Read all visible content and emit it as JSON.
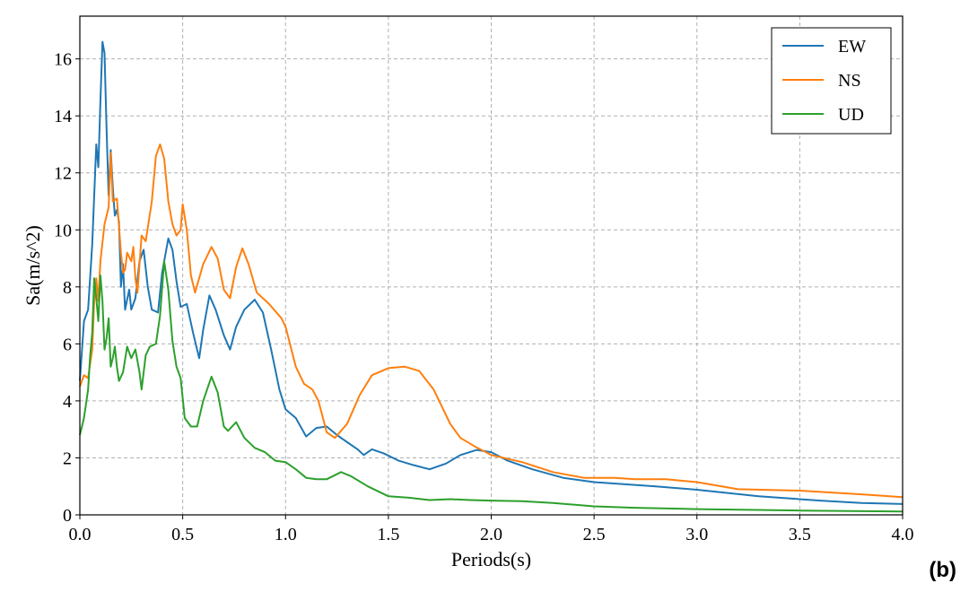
{
  "panel_label": "(b)",
  "chart_data": {
    "type": "line",
    "xlabel": "Periods(s)",
    "ylabel": "Sa(m/s^2)",
    "xlim": [
      0.0,
      4.0
    ],
    "ylim": [
      0,
      17.5
    ],
    "xticks": [
      "0.0",
      "0.5",
      "1.0",
      "1.5",
      "2.0",
      "2.5",
      "3.0",
      "3.5",
      "4.0"
    ],
    "yticks": [
      "0",
      "2",
      "4",
      "6",
      "8",
      "10",
      "12",
      "14",
      "16"
    ],
    "grid": true,
    "legend_position": "top-right",
    "series": [
      {
        "name": "EW",
        "color": "#1f77b4",
        "points": [
          [
            0,
            4.7
          ],
          [
            0.02,
            6.8
          ],
          [
            0.04,
            7.2
          ],
          [
            0.06,
            9.5
          ],
          [
            0.08,
            13.0
          ],
          [
            0.09,
            12.2
          ],
          [
            0.1,
            14.5
          ],
          [
            0.11,
            16.6
          ],
          [
            0.12,
            16.2
          ],
          [
            0.13,
            13.5
          ],
          [
            0.14,
            11.2
          ],
          [
            0.15,
            12.8
          ],
          [
            0.16,
            11.5
          ],
          [
            0.17,
            10.5
          ],
          [
            0.18,
            10.7
          ],
          [
            0.19,
            10.3
          ],
          [
            0.2,
            8.0
          ],
          [
            0.21,
            8.8
          ],
          [
            0.22,
            7.2
          ],
          [
            0.24,
            7.9
          ],
          [
            0.25,
            7.2
          ],
          [
            0.27,
            7.6
          ],
          [
            0.29,
            8.9
          ],
          [
            0.31,
            9.3
          ],
          [
            0.33,
            8.0
          ],
          [
            0.35,
            7.2
          ],
          [
            0.38,
            7.1
          ],
          [
            0.4,
            8.5
          ],
          [
            0.43,
            9.7
          ],
          [
            0.45,
            9.3
          ],
          [
            0.47,
            8.2
          ],
          [
            0.49,
            7.3
          ],
          [
            0.52,
            7.4
          ],
          [
            0.55,
            6.4
          ],
          [
            0.58,
            5.5
          ],
          [
            0.6,
            6.5
          ],
          [
            0.63,
            7.7
          ],
          [
            0.66,
            7.2
          ],
          [
            0.7,
            6.3
          ],
          [
            0.73,
            5.8
          ],
          [
            0.76,
            6.6
          ],
          [
            0.8,
            7.2
          ],
          [
            0.85,
            7.55
          ],
          [
            0.89,
            7.1
          ],
          [
            0.93,
            5.8
          ],
          [
            0.97,
            4.4
          ],
          [
            1.0,
            3.7
          ],
          [
            1.05,
            3.4
          ],
          [
            1.1,
            2.75
          ],
          [
            1.15,
            3.05
          ],
          [
            1.2,
            3.1
          ],
          [
            1.25,
            2.8
          ],
          [
            1.3,
            2.55
          ],
          [
            1.35,
            2.3
          ],
          [
            1.38,
            2.1
          ],
          [
            1.42,
            2.3
          ],
          [
            1.48,
            2.15
          ],
          [
            1.55,
            1.9
          ],
          [
            1.62,
            1.75
          ],
          [
            1.7,
            1.6
          ],
          [
            1.78,
            1.8
          ],
          [
            1.85,
            2.1
          ],
          [
            1.93,
            2.28
          ],
          [
            2.0,
            2.2
          ],
          [
            2.08,
            1.9
          ],
          [
            2.2,
            1.6
          ],
          [
            2.35,
            1.3
          ],
          [
            2.5,
            1.15
          ],
          [
            2.8,
            1.0
          ],
          [
            3.0,
            0.88
          ],
          [
            3.3,
            0.65
          ],
          [
            3.6,
            0.5
          ],
          [
            3.8,
            0.42
          ],
          [
            4.0,
            0.38
          ]
        ]
      },
      {
        "name": "NS",
        "color": "#ff7f0e",
        "points": [
          [
            0,
            4.5
          ],
          [
            0.02,
            4.9
          ],
          [
            0.04,
            4.8
          ],
          [
            0.06,
            5.8
          ],
          [
            0.07,
            7.5
          ],
          [
            0.08,
            8.3
          ],
          [
            0.09,
            7.5
          ],
          [
            0.1,
            8.9
          ],
          [
            0.12,
            10.2
          ],
          [
            0.14,
            10.8
          ],
          [
            0.15,
            12.7
          ],
          [
            0.16,
            11.0
          ],
          [
            0.18,
            11.1
          ],
          [
            0.2,
            9.2
          ],
          [
            0.21,
            8.5
          ],
          [
            0.22,
            8.6
          ],
          [
            0.23,
            9.2
          ],
          [
            0.25,
            8.9
          ],
          [
            0.26,
            9.4
          ],
          [
            0.27,
            8.3
          ],
          [
            0.28,
            7.8
          ],
          [
            0.3,
            9.8
          ],
          [
            0.32,
            9.6
          ],
          [
            0.35,
            11.0
          ],
          [
            0.37,
            12.6
          ],
          [
            0.39,
            13.0
          ],
          [
            0.41,
            12.5
          ],
          [
            0.43,
            11.0
          ],
          [
            0.45,
            10.2
          ],
          [
            0.47,
            9.8
          ],
          [
            0.49,
            10.0
          ],
          [
            0.5,
            10.9
          ],
          [
            0.52,
            10.0
          ],
          [
            0.54,
            8.4
          ],
          [
            0.56,
            7.8
          ],
          [
            0.6,
            8.8
          ],
          [
            0.64,
            9.4
          ],
          [
            0.67,
            9.0
          ],
          [
            0.7,
            7.9
          ],
          [
            0.73,
            7.6
          ],
          [
            0.76,
            8.7
          ],
          [
            0.79,
            9.35
          ],
          [
            0.82,
            8.8
          ],
          [
            0.86,
            7.8
          ],
          [
            0.92,
            7.4
          ],
          [
            0.98,
            6.9
          ],
          [
            1.0,
            6.6
          ],
          [
            1.05,
            5.2
          ],
          [
            1.09,
            4.6
          ],
          [
            1.13,
            4.4
          ],
          [
            1.16,
            4.0
          ],
          [
            1.2,
            2.9
          ],
          [
            1.24,
            2.7
          ],
          [
            1.3,
            3.2
          ],
          [
            1.36,
            4.2
          ],
          [
            1.42,
            4.9
          ],
          [
            1.5,
            5.15
          ],
          [
            1.58,
            5.2
          ],
          [
            1.65,
            5.05
          ],
          [
            1.72,
            4.4
          ],
          [
            1.8,
            3.2
          ],
          [
            1.85,
            2.7
          ],
          [
            1.92,
            2.4
          ],
          [
            2.0,
            2.1
          ],
          [
            2.15,
            1.85
          ],
          [
            2.3,
            1.5
          ],
          [
            2.45,
            1.3
          ],
          [
            2.6,
            1.3
          ],
          [
            2.7,
            1.25
          ],
          [
            2.85,
            1.25
          ],
          [
            3.0,
            1.15
          ],
          [
            3.2,
            0.9
          ],
          [
            3.5,
            0.85
          ],
          [
            3.8,
            0.72
          ],
          [
            4.0,
            0.62
          ]
        ]
      },
      {
        "name": "UD",
        "color": "#2ca02c",
        "points": [
          [
            0,
            2.8
          ],
          [
            0.02,
            3.4
          ],
          [
            0.04,
            4.4
          ],
          [
            0.05,
            5.6
          ],
          [
            0.06,
            6.4
          ],
          [
            0.07,
            8.3
          ],
          [
            0.08,
            7.6
          ],
          [
            0.09,
            6.8
          ],
          [
            0.1,
            8.4
          ],
          [
            0.11,
            7.5
          ],
          [
            0.12,
            5.8
          ],
          [
            0.13,
            6.2
          ],
          [
            0.14,
            6.9
          ],
          [
            0.15,
            5.2
          ],
          [
            0.16,
            5.5
          ],
          [
            0.17,
            5.9
          ],
          [
            0.18,
            5.2
          ],
          [
            0.19,
            4.7
          ],
          [
            0.21,
            5.0
          ],
          [
            0.23,
            5.9
          ],
          [
            0.25,
            5.5
          ],
          [
            0.27,
            5.8
          ],
          [
            0.29,
            5.0
          ],
          [
            0.3,
            4.4
          ],
          [
            0.32,
            5.6
          ],
          [
            0.34,
            5.9
          ],
          [
            0.37,
            6.0
          ],
          [
            0.39,
            7.0
          ],
          [
            0.41,
            8.9
          ],
          [
            0.43,
            7.9
          ],
          [
            0.45,
            6.1
          ],
          [
            0.47,
            5.2
          ],
          [
            0.49,
            4.8
          ],
          [
            0.51,
            3.4
          ],
          [
            0.54,
            3.1
          ],
          [
            0.57,
            3.1
          ],
          [
            0.6,
            4.0
          ],
          [
            0.64,
            4.85
          ],
          [
            0.67,
            4.3
          ],
          [
            0.7,
            3.1
          ],
          [
            0.72,
            2.95
          ],
          [
            0.76,
            3.25
          ],
          [
            0.8,
            2.7
          ],
          [
            0.85,
            2.35
          ],
          [
            0.9,
            2.2
          ],
          [
            0.95,
            1.9
          ],
          [
            1.0,
            1.85
          ],
          [
            1.05,
            1.6
          ],
          [
            1.1,
            1.3
          ],
          [
            1.15,
            1.25
          ],
          [
            1.2,
            1.25
          ],
          [
            1.27,
            1.5
          ],
          [
            1.32,
            1.35
          ],
          [
            1.4,
            1.0
          ],
          [
            1.5,
            0.65
          ],
          [
            1.6,
            0.6
          ],
          [
            1.7,
            0.52
          ],
          [
            1.8,
            0.55
          ],
          [
            1.9,
            0.52
          ],
          [
            2.0,
            0.5
          ],
          [
            2.15,
            0.48
          ],
          [
            2.3,
            0.42
          ],
          [
            2.5,
            0.3
          ],
          [
            2.7,
            0.25
          ],
          [
            3.0,
            0.2
          ],
          [
            3.5,
            0.15
          ],
          [
            4.0,
            0.12
          ]
        ]
      }
    ]
  }
}
